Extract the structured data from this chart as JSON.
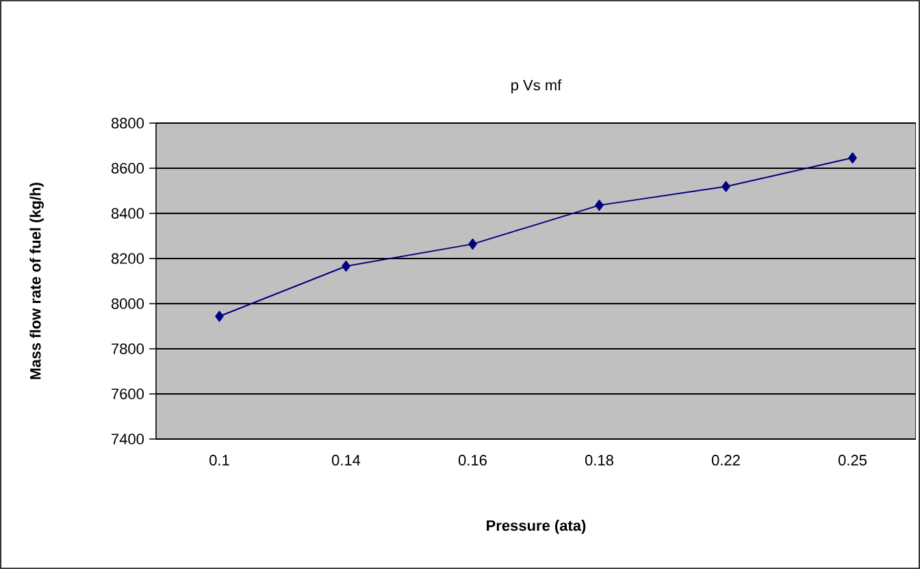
{
  "chart_data": {
    "type": "line",
    "title": "p Vs mf",
    "xlabel": "Pressure (ata)",
    "ylabel": "Mass flow rate of fuel (kg/h)",
    "categories": [
      "0.1",
      "0.14",
      "0.16",
      "0.18",
      "0.22",
      "0.25"
    ],
    "series": [
      {
        "color": "#000080",
        "values": [
          7944,
          8166,
          8264,
          8436,
          8519,
          8646
        ]
      }
    ],
    "ylim": [
      7400,
      8800
    ],
    "yticks": [
      7400,
      7600,
      7800,
      8000,
      8200,
      8400,
      8600,
      8800
    ],
    "grid": "y",
    "marker": "diamond",
    "line_style": "solid"
  }
}
